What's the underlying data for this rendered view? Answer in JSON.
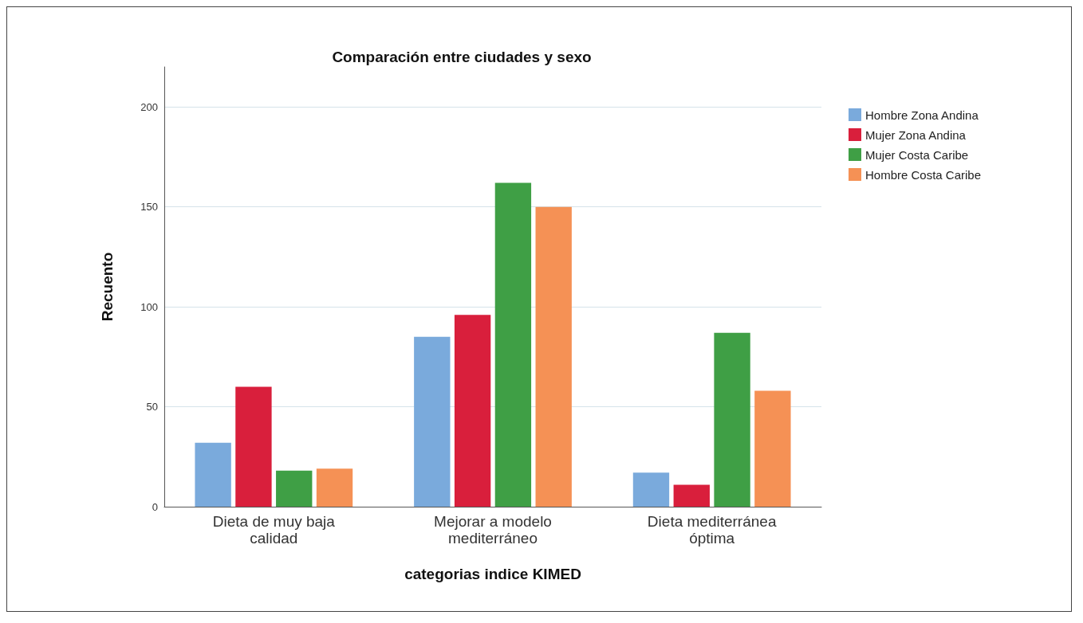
{
  "chart_data": {
    "type": "bar",
    "title": "Comparación entre ciudades y sexo",
    "xlabel": "categorias indice KIMED",
    "ylabel": "Recuento",
    "categories": [
      "Dieta de muy baja\ncalidad",
      "Mejorar a modelo\nmediterráneo",
      "Dieta mediterránea\nóptima"
    ],
    "series": [
      {
        "name": "Hombre Zona Andina",
        "color": "#7aaadc",
        "values": [
          32,
          85,
          17
        ]
      },
      {
        "name": "Mujer Zona Andina",
        "color": "#d91f3c",
        "values": [
          60,
          96,
          11
        ]
      },
      {
        "name": "Mujer Costa Caribe",
        "color": "#3f9f45",
        "values": [
          18,
          162,
          87
        ]
      },
      {
        "name": "Hombre Costa Caribe",
        "color": "#f59155",
        "values": [
          19,
          150,
          58
        ]
      }
    ],
    "ylim": [
      0,
      220
    ],
    "yticks": [
      0,
      50,
      100,
      150,
      200
    ],
    "grid": "y",
    "legend": "top right"
  }
}
